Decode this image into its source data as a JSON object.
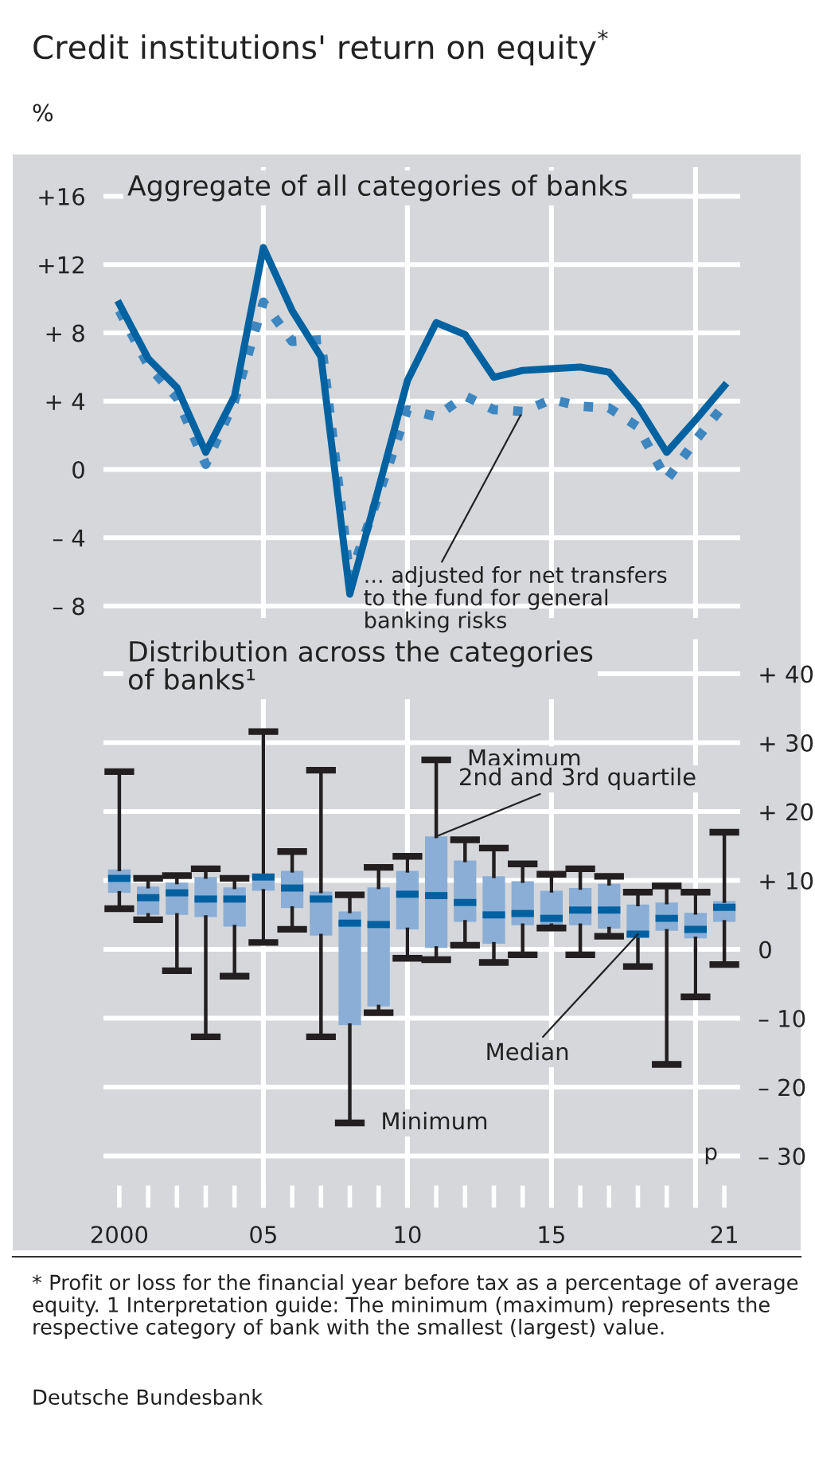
{
  "chart_data": [
    {
      "type": "line",
      "title": "Credit institutions' return on equity$^{*}$",
      "ylabel": "%",
      "subtitle": "Aggregate of all categories of banks",
      "x": [
        2000,
        2001,
        2002,
        2003,
        2004,
        2005,
        2006,
        2007,
        2008,
        2009,
        2010,
        2011,
        2012,
        2013,
        2014,
        2015,
        2016,
        2017,
        2018,
        2019,
        2020,
        2021
      ],
      "series": [
        {
          "color": "#0062a1",
          "line_style": "solid",
          "values": [
            9.7,
            6.5,
            4.8,
            1.0,
            4.3,
            13.0,
            9.3,
            6.6,
            -7.3,
            -1.1,
            5.2,
            8.6,
            7.9,
            5.4,
            5.8,
            5.9,
            6.0,
            5.7,
            3.7,
            1.0,
            2.9,
            4.9
          ]
        },
        {
          "name": "... adjusted for net transfers\nto the fund for general\nbanking risks",
          "color": "#3d86c0",
          "line_style": "dotted",
          "values": [
            9.3,
            6.1,
            4.2,
            0.3,
            4.0,
            9.8,
            7.5,
            7.6,
            -6.3,
            -1.5,
            3.5,
            3.1,
            4.3,
            3.5,
            3.4,
            4.1,
            3.7,
            3.6,
            2.5,
            -0.6,
            1.7,
            3.8
          ]
        }
      ],
      "xlim": [
        1999.45,
        2021.55
      ],
      "ylim": [
        -8.7,
        17.7
      ],
      "yticks": [
        {
          "value": 16,
          "label": "+16"
        },
        {
          "value": 12,
          "label": "+12"
        },
        {
          "value": 8,
          "label": "+ 8"
        },
        {
          "value": 4,
          "label": "+ 4"
        },
        0,
        {
          "value": -4,
          "label": "– 4"
        },
        {
          "value": -8,
          "label": "– 8"
        }
      ],
      "grid": "y",
      "tick_labels": "y",
      "marker": "none",
      "ref_lines": [
        {
          "axis": "x",
          "value": 2005,
          "color": "#ffffff"
        },
        {
          "axis": "x",
          "value": 2010,
          "color": "#ffffff"
        },
        {
          "axis": "x",
          "value": 2015,
          "color": "#ffffff"
        },
        {
          "axis": "x",
          "value": 2020,
          "color": "#ffffff"
        }
      ]
    },
    {
      "type": "box",
      "title": "Distribution across the categories\nof banks¹",
      "x": [
        2000,
        2001,
        2002,
        2003,
        2004,
        2005,
        2006,
        2007,
        2008,
        2009,
        2010,
        2011,
        2012,
        2013,
        2014,
        2015,
        2016,
        2017,
        2018,
        2019,
        2020,
        2021
      ],
      "series": [
        {
          "color": "#8aaed6",
          "boxes": [
            {
              "low": 5.9,
              "q1": 8.2,
              "median": 10.3,
              "q3": 11.6,
              "high": 25.8
            },
            {
              "low": 4.3,
              "q1": 5.0,
              "median": 7.5,
              "q3": 9.1,
              "high": 10.3
            },
            {
              "low": -3.1,
              "q1": 5.0,
              "median": 8.2,
              "q3": 9.7,
              "high": 10.7
            },
            {
              "low": -12.7,
              "q1": 4.7,
              "median": 7.3,
              "q3": 10.5,
              "high": 11.7
            },
            {
              "low": -3.9,
              "q1": 3.3,
              "median": 7.3,
              "q3": 9.0,
              "high": 10.3
            },
            {
              "low": 1.0,
              "q1": 8.5,
              "median": 10.5,
              "q3": 10.9,
              "high": 31.6
            },
            {
              "low": 2.9,
              "q1": 6.0,
              "median": 8.9,
              "q3": 11.4,
              "high": 14.2
            },
            {
              "low": -12.7,
              "q1": 2.0,
              "median": 7.3,
              "q3": 8.4,
              "high": 26.0
            },
            {
              "low": -25.2,
              "q1": -11.0,
              "median": 3.8,
              "q3": 5.5,
              "high": 7.9
            },
            {
              "low": -9.2,
              "q1": -8.3,
              "median": 3.6,
              "q3": 9.0,
              "high": 11.9
            },
            {
              "low": -1.3,
              "q1": 2.9,
              "median": 8.0,
              "q3": 11.4,
              "high": 13.5
            },
            {
              "low": -1.5,
              "q1": 0.2,
              "median": 7.8,
              "q3": 16.4,
              "high": 27.5
            },
            {
              "low": 0.6,
              "q1": 4.0,
              "median": 6.8,
              "q3": 12.9,
              "high": 15.9
            },
            {
              "low": -1.9,
              "q1": 0.8,
              "median": 5.0,
              "q3": 10.6,
              "high": 14.7
            },
            {
              "low": -0.8,
              "q1": 3.5,
              "median": 5.2,
              "q3": 9.9,
              "high": 12.4
            },
            {
              "low": 3.1,
              "q1": 3.5,
              "median": 4.5,
              "q3": 8.5,
              "high": 10.9
            },
            {
              "low": -0.8,
              "q1": 3.5,
              "median": 5.7,
              "q3": 8.9,
              "high": 11.7
            },
            {
              "low": 1.9,
              "q1": 3.0,
              "median": 5.7,
              "q3": 9.5,
              "high": 10.6
            },
            {
              "low": -2.5,
              "q1": 1.8,
              "median": 2.2,
              "q3": 6.5,
              "high": 8.3
            },
            {
              "low": -16.7,
              "q1": 2.7,
              "median": 4.5,
              "q3": 6.8,
              "high": 9.2
            },
            {
              "low": -6.9,
              "q1": 1.6,
              "median": 2.9,
              "q3": 5.3,
              "high": 8.3
            },
            {
              "low": -2.2,
              "q1": 4.0,
              "median": 6.1,
              "q3": 7.0,
              "high": 17.0
            }
          ]
        }
      ],
      "xlim": [
        1999.45,
        2021.55
      ],
      "ylim": [
        -37.5,
        45
      ],
      "xticks": [
        {
          "value": 2000,
          "label": "2000"
        },
        {
          "value": 2001,
          "label": null
        },
        {
          "value": 2002,
          "label": null
        },
        {
          "value": 2003,
          "label": null
        },
        {
          "value": 2004,
          "label": null
        },
        {
          "value": 2005,
          "label": "05"
        },
        {
          "value": 2006,
          "label": null
        },
        {
          "value": 2007,
          "label": null
        },
        {
          "value": 2008,
          "label": null
        },
        {
          "value": 2009,
          "label": null
        },
        {
          "value": 2010,
          "label": "10"
        },
        {
          "value": 2011,
          "label": null
        },
        {
          "value": 2012,
          "label": null
        },
        {
          "value": 2013,
          "label": null
        },
        {
          "value": 2014,
          "label": null
        },
        {
          "value": 2015,
          "label": "15"
        },
        {
          "value": 2016,
          "label": null
        },
        {
          "value": 2017,
          "label": null
        },
        {
          "value": 2018,
          "label": null
        },
        {
          "value": 2019,
          "label": null
        },
        {
          "value": 2020,
          "label": null
        },
        {
          "value": 2021,
          "label": "21"
        }
      ],
      "yticks": [
        {
          "value": 40,
          "label": "+ 40"
        },
        {
          "value": 30,
          "label": "+ 30"
        },
        {
          "value": 20,
          "label": "+ 20"
        },
        {
          "value": 10,
          "label": "+ 10"
        },
        0,
        {
          "value": -10,
          "label": "– 10"
        },
        {
          "value": -20,
          "label": "– 20"
        },
        {
          "value": -30,
          "label": "– 30"
        }
      ],
      "grid": "y",
      "ref_lines": [
        {
          "axis": "x",
          "value": 2005,
          "color": "#ffffff"
        },
        {
          "axis": "x",
          "value": 2010,
          "color": "#ffffff"
        },
        {
          "axis": "x",
          "value": 2015,
          "color": "#ffffff"
        },
        {
          "axis": "x",
          "value": 2020,
          "color": "#ffffff"
        }
      ],
      "annotations": [
        {
          "text": "Maximum",
          "x": 2011,
          "y": 27.5
        },
        {
          "text": "2nd and 3rd quartile",
          "x": 2011,
          "y": 16.4
        },
        {
          "text": "Median",
          "x": 2018,
          "y": 2.2
        },
        {
          "text": "Minimum",
          "x": 2008,
          "y": -25.2
        },
        "p",
        "* Profit or loss for the financial year before tax as a percentage of average equity. 1 Interpretation guide: The minimum (maximum) represents the respective category of bank with the smallest (largest) value.",
        "Deutsche Bundesbank"
      ]
    }
  ]
}
